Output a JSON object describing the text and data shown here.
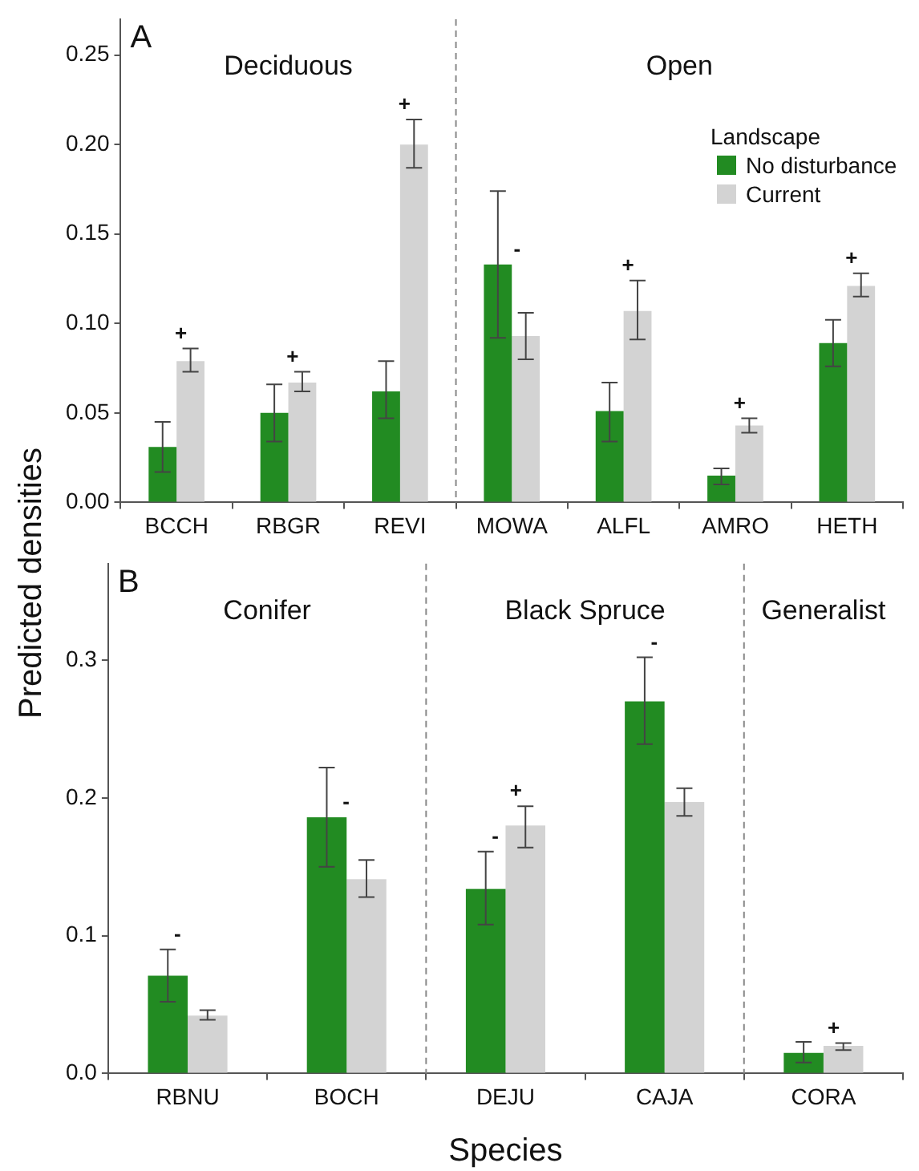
{
  "chart_data": [
    {
      "type": "bar",
      "title": "A",
      "ylabel": "Predicted densities",
      "legend_title": "Landscape",
      "legend": "top right",
      "categories": [
        "BCCH",
        "RBGR",
        "REVI",
        "MOWA",
        "ALFL",
        "AMRO",
        "HETH"
      ],
      "series": [
        {
          "name": "No disturbance",
          "color": "#228b22",
          "values": [
            0.031,
            0.05,
            0.062,
            0.133,
            0.051,
            0.015,
            0.089
          ],
          "value_labels": [
            null,
            null,
            null,
            "-",
            null,
            null,
            null
          ],
          "errors": [
            [
              0.017,
              0.045
            ],
            [
              0.034,
              0.066
            ],
            [
              0.047,
              0.079
            ],
            [
              0.092,
              0.174
            ],
            [
              0.034,
              0.067
            ],
            [
              0.01,
              0.019
            ],
            [
              0.076,
              0.102
            ]
          ]
        },
        {
          "name": "Current",
          "color": "#d3d3d3",
          "values": [
            0.079,
            0.067,
            0.2,
            0.093,
            0.107,
            0.043,
            0.121
          ],
          "value_labels": [
            "+",
            "+",
            "+",
            null,
            "+",
            "+",
            "+"
          ],
          "errors": [
            [
              0.073,
              0.086
            ],
            [
              0.062,
              0.073
            ],
            [
              0.187,
              0.214
            ],
            [
              0.08,
              0.106
            ],
            [
              0.091,
              0.124
            ],
            [
              0.039,
              0.047
            ],
            [
              0.115,
              0.128
            ]
          ]
        }
      ],
      "ylim": [
        0,
        0.27
      ],
      "yticks": [
        {
          "value": 0,
          "label": "0.00"
        },
        {
          "value": 0.05,
          "label": "0.05"
        },
        {
          "value": 0.1,
          "label": "0.10"
        },
        {
          "value": 0.15,
          "label": "0.15"
        },
        {
          "value": 0.2,
          "label": "0.20"
        },
        {
          "value": 0.25,
          "label": "0.25"
        }
      ],
      "grid": false,
      "annotations": [
        "Deciduous",
        "Open"
      ]
    },
    {
      "type": "bar",
      "title": "B",
      "xlabel": "Species",
      "legend": false,
      "categories": [
        "RBNU",
        "BOCH",
        "DEJU",
        "CAJA",
        "CORA"
      ],
      "series": [
        {
          "color": "#228b22",
          "values": [
            0.071,
            0.186,
            0.134,
            0.27,
            0.015
          ],
          "value_labels": [
            "-",
            "-",
            "-",
            "-",
            null
          ],
          "errors": [
            [
              0.052,
              0.09
            ],
            [
              0.15,
              0.222
            ],
            [
              0.108,
              0.161
            ],
            [
              0.239,
              0.302
            ],
            [
              0.008,
              0.023
            ]
          ]
        },
        {
          "color": "#d3d3d3",
          "values": [
            0.042,
            0.141,
            0.18,
            0.197,
            0.02
          ],
          "value_labels": [
            null,
            null,
            "+",
            null,
            "+"
          ],
          "errors": [
            [
              0.039,
              0.046
            ],
            [
              0.128,
              0.155
            ],
            [
              0.164,
              0.194
            ],
            [
              0.187,
              0.207
            ],
            [
              0.017,
              0.022
            ]
          ]
        }
      ],
      "ylim": [
        0,
        0.37
      ],
      "yticks": [
        {
          "value": 0,
          "label": "0.0"
        },
        {
          "value": 0.1,
          "label": "0.1"
        },
        {
          "value": 0.2,
          "label": "0.2"
        },
        {
          "value": 0.3,
          "label": "0.3"
        }
      ],
      "grid": false,
      "annotations": [
        "Conifer",
        "Black Spruce",
        "Generalist"
      ]
    }
  ]
}
